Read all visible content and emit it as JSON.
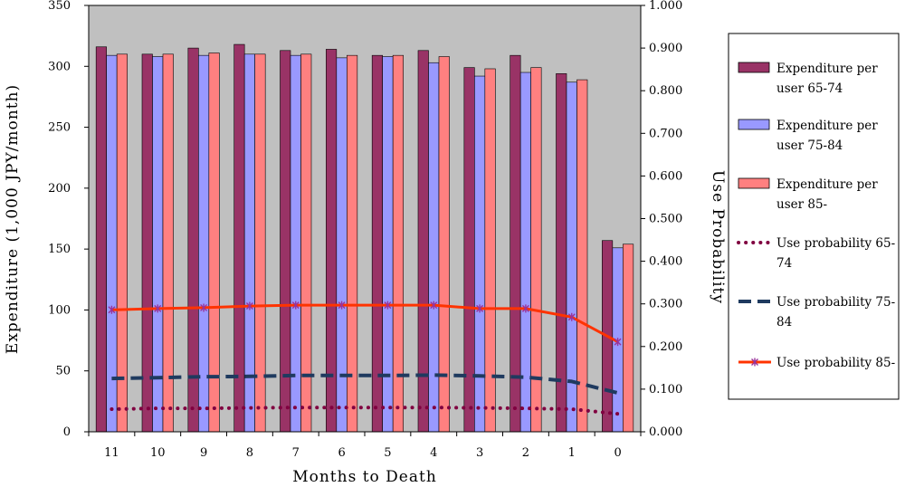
{
  "chart_data": {
    "type": "bar",
    "xlabel": "Months to Death",
    "ylabel": "Expenditure (1,000 JPY/month)",
    "y2label": "Use Probability",
    "ylim": [
      0,
      350
    ],
    "y2lim": [
      0,
      1
    ],
    "y_ticks": [
      "0",
      "50",
      "100",
      "150",
      "200",
      "250",
      "300",
      "350"
    ],
    "y2_ticks": [
      "0.000",
      "0.100",
      "0.200",
      "0.300",
      "0.400",
      "0.500",
      "0.600",
      "0.700",
      "0.800",
      "0.900",
      "1.000"
    ],
    "categories": [
      "11",
      "10",
      "9",
      "8",
      "7",
      "6",
      "5",
      "4",
      "3",
      "2",
      "1",
      "0"
    ],
    "plot_background": "#c0c0c0",
    "grid": false,
    "legend_position": "right",
    "series": [
      {
        "name": "Expenditure per user 65-74",
        "kind": "bar",
        "axis": "left",
        "color": "#993366",
        "values": [
          316,
          310,
          315,
          318,
          313,
          314,
          309,
          313,
          299,
          309,
          294,
          157
        ]
      },
      {
        "name": "Expenditure per user 75-84",
        "kind": "bar",
        "axis": "left",
        "color": "#9999ff",
        "values": [
          309,
          308,
          309,
          310,
          309,
          307,
          308,
          303,
          292,
          295,
          287,
          151
        ]
      },
      {
        "name": "Expenditure per user 85-",
        "kind": "bar",
        "axis": "left",
        "color": "#ff8080",
        "values": [
          310,
          310,
          311,
          310,
          310,
          309,
          309,
          308,
          298,
          299,
          289,
          154
        ]
      },
      {
        "name": "Use probability 65-74",
        "kind": "line",
        "axis": "right",
        "color": "#800040",
        "style": "dotted",
        "values": [
          0.053,
          0.055,
          0.055,
          0.056,
          0.057,
          0.057,
          0.057,
          0.057,
          0.056,
          0.055,
          0.053,
          0.042
        ]
      },
      {
        "name": "Use probability 75-84",
        "kind": "line",
        "axis": "right",
        "color": "#1f3a5f",
        "style": "dashed",
        "values": [
          0.125,
          0.127,
          0.129,
          0.13,
          0.132,
          0.132,
          0.132,
          0.133,
          0.131,
          0.128,
          0.118,
          0.091
        ]
      },
      {
        "name": "Use probability 85-",
        "kind": "line",
        "axis": "right",
        "color": "#ff3300",
        "style": "solid-marker",
        "values": [
          0.286,
          0.289,
          0.291,
          0.295,
          0.297,
          0.297,
          0.297,
          0.297,
          0.289,
          0.289,
          0.269,
          0.211
        ]
      }
    ]
  }
}
